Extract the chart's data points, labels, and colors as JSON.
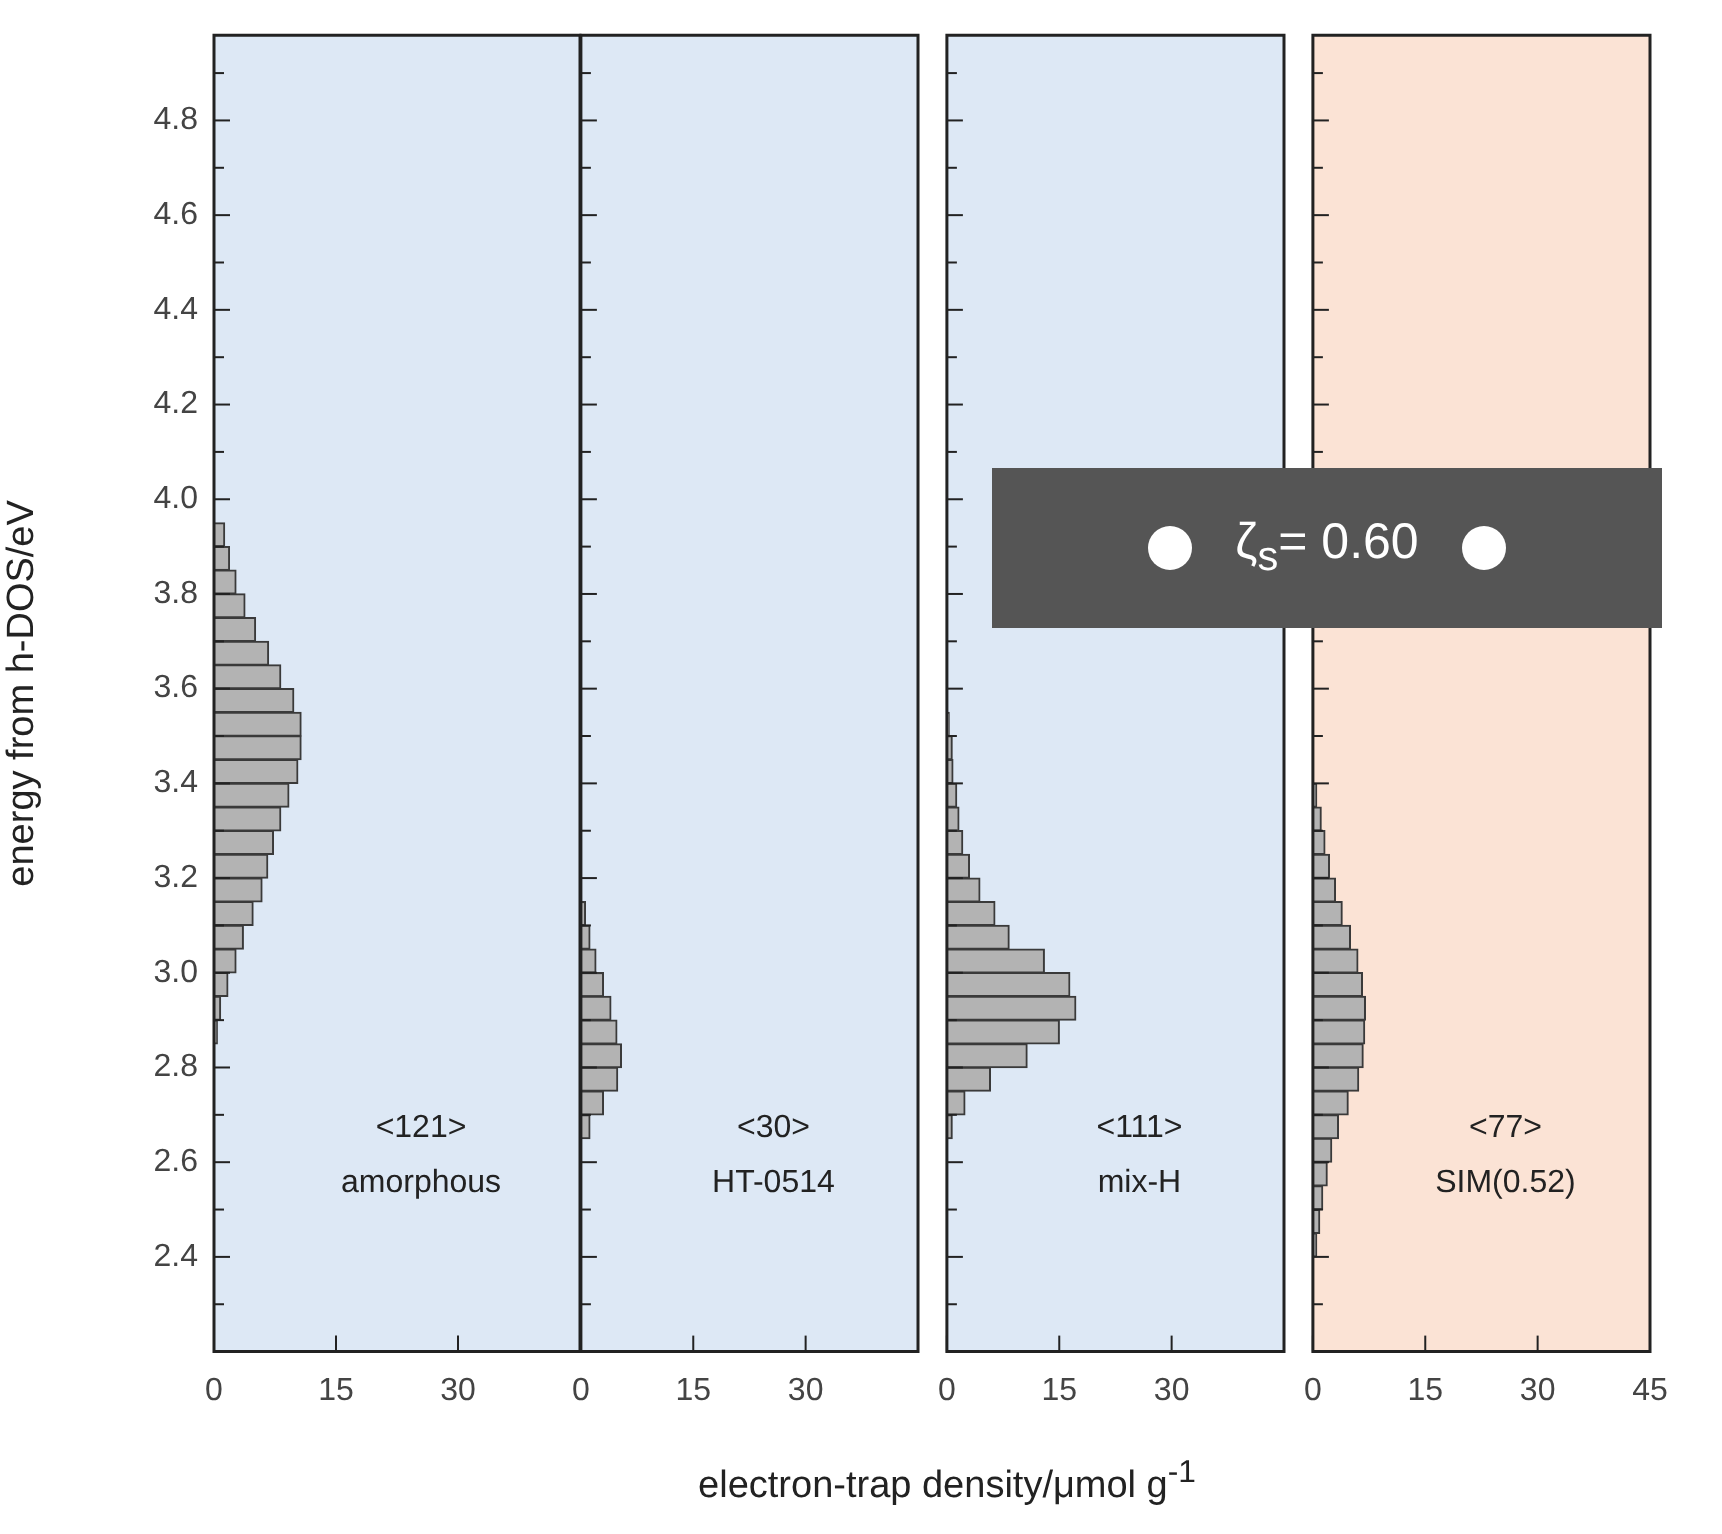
{
  "chart_data": [
    {
      "type": "histogram",
      "orientation": "horizontal",
      "color": "#b3b3b3",
      "ylabel": "energy from h-DOS/eV",
      "xlabel": "electron-trap density/μmol g$^{-1}$",
      "bins": [
        2.85,
        2.9,
        2.95,
        3.0,
        3.05,
        3.1,
        3.15,
        3.2,
        3.25,
        3.3,
        3.35,
        3.4,
        3.45,
        3.5,
        3.55,
        3.6,
        3.65,
        3.7,
        3.75,
        3.8,
        3.85,
        3.9,
        3.95
      ],
      "values": [
        0.4,
        0.8,
        1.7,
        2.7,
        3.6,
        4.8,
        5.9,
        6.6,
        7.3,
        8.2,
        9.2,
        10.3,
        10.7,
        10.7,
        9.8,
        8.2,
        6.7,
        5.1,
        3.8,
        2.7,
        1.9,
        1.3
      ],
      "xlim": [
        0,
        45
      ],
      "xticks": [
        0,
        15,
        30
      ],
      "ylim": [
        2.2,
        4.98
      ],
      "yticks": [
        {
          "value": 2.3,
          "label": null
        },
        2.4,
        {
          "value": 2.5,
          "label": null
        },
        2.6,
        {
          "value": 2.7,
          "label": null
        },
        2.8,
        {
          "value": 2.9,
          "label": null
        },
        {
          "value": 3,
          "label": "3.0"
        },
        {
          "value": 3.1,
          "label": null
        },
        3.2,
        {
          "value": 3.3,
          "label": null
        },
        3.4,
        {
          "value": 3.5,
          "label": null
        },
        3.6,
        {
          "value": 3.7,
          "label": null
        },
        3.8,
        {
          "value": 3.9,
          "label": null
        },
        {
          "value": 4,
          "label": "4.0"
        },
        {
          "value": 4.1,
          "label": null
        },
        4.2,
        {
          "value": 4.3,
          "label": null
        },
        4.4,
        {
          "value": 4.5,
          "label": null
        },
        4.6,
        {
          "value": 4.7,
          "label": null
        },
        4.8,
        {
          "value": 4.9,
          "label": null
        }
      ],
      "annotations": [
        "<121>",
        "amorphous"
      ]
    },
    {
      "type": "histogram",
      "orientation": "horizontal",
      "color": "#b3b3b3",
      "tick_labels": "x",
      "bins": [
        2.65,
        2.7,
        2.75,
        2.8,
        2.85,
        2.9,
        2.95,
        3.0,
        3.05,
        3.1,
        3.15
      ],
      "values": [
        1.2,
        3.0,
        4.9,
        5.4,
        4.8,
        4.0,
        3.0,
        2.0,
        1.2,
        0.6
      ],
      "xlim": [
        0,
        45
      ],
      "xticks": [
        0,
        15,
        30
      ],
      "ylim": [
        2.2,
        4.98
      ],
      "yticks": [
        {
          "value": 2.3,
          "label": null
        },
        {
          "value": 2.4,
          "label": null
        },
        {
          "value": 2.5,
          "label": null
        },
        {
          "value": 2.6,
          "label": null
        },
        {
          "value": 2.7,
          "label": null
        },
        {
          "value": 2.8,
          "label": null
        },
        {
          "value": 2.9,
          "label": null
        },
        {
          "value": 3,
          "label": null
        },
        {
          "value": 3.1,
          "label": null
        },
        {
          "value": 3.2,
          "label": null
        },
        {
          "value": 3.3,
          "label": null
        },
        {
          "value": 3.4,
          "label": null
        },
        {
          "value": 3.5,
          "label": null
        },
        {
          "value": 3.6,
          "label": null
        },
        {
          "value": 3.7,
          "label": null
        },
        {
          "value": 3.8,
          "label": null
        },
        {
          "value": 3.9,
          "label": null
        },
        {
          "value": 4,
          "label": null
        },
        {
          "value": 4.1,
          "label": null
        },
        {
          "value": 4.2,
          "label": null
        },
        {
          "value": 4.3,
          "label": null
        },
        {
          "value": 4.4,
          "label": null
        },
        {
          "value": 4.5,
          "label": null
        },
        {
          "value": 4.6,
          "label": null
        },
        {
          "value": 4.7,
          "label": null
        },
        {
          "value": 4.8,
          "label": null
        },
        {
          "value": 4.9,
          "label": null
        }
      ],
      "annotations": [
        "<30>",
        "HT-0514"
      ]
    },
    {
      "type": "histogram",
      "orientation": "horizontal",
      "color": "#b3b3b3",
      "tick_labels": "x",
      "bins": [
        2.65,
        2.7,
        2.75,
        2.8,
        2.85,
        2.9,
        2.95,
        3.0,
        3.05,
        3.1,
        3.15,
        3.2,
        3.25,
        3.3,
        3.35,
        3.4,
        3.45,
        3.5,
        3.55
      ],
      "values": [
        0.7,
        2.4,
        5.8,
        10.7,
        15.0,
        17.2,
        16.4,
        13.0,
        8.3,
        6.4,
        4.4,
        3.0,
        2.1,
        1.6,
        1.3,
        0.8,
        0.7,
        0.3
      ],
      "xlim": [
        0,
        45
      ],
      "xticks": [
        0,
        15,
        30
      ],
      "ylim": [
        2.2,
        4.98
      ],
      "yticks": [
        {
          "value": 2.3,
          "label": null
        },
        {
          "value": 2.4,
          "label": null
        },
        {
          "value": 2.5,
          "label": null
        },
        {
          "value": 2.6,
          "label": null
        },
        {
          "value": 2.7,
          "label": null
        },
        {
          "value": 2.8,
          "label": null
        },
        {
          "value": 2.9,
          "label": null
        },
        {
          "value": 3,
          "label": null
        },
        {
          "value": 3.1,
          "label": null
        },
        {
          "value": 3.2,
          "label": null
        },
        {
          "value": 3.3,
          "label": null
        },
        {
          "value": 3.4,
          "label": null
        },
        {
          "value": 3.5,
          "label": null
        },
        {
          "value": 3.6,
          "label": null
        },
        {
          "value": 3.7,
          "label": null
        },
        {
          "value": 3.8,
          "label": null
        },
        {
          "value": 3.9,
          "label": null
        },
        {
          "value": 4,
          "label": null
        },
        {
          "value": 4.1,
          "label": null
        },
        {
          "value": 4.2,
          "label": null
        },
        {
          "value": 4.3,
          "label": null
        },
        {
          "value": 4.4,
          "label": null
        },
        {
          "value": 4.5,
          "label": null
        },
        {
          "value": 4.6,
          "label": null
        },
        {
          "value": 4.7,
          "label": null
        },
        {
          "value": 4.8,
          "label": null
        },
        {
          "value": 4.9,
          "label": null
        }
      ],
      "annotations": [
        "<111>",
        "mix-H",
        "ζ$_{s}$= 0.60"
      ]
    },
    {
      "type": "histogram",
      "orientation": "horizontal",
      "color": "#b3b3b3",
      "tick_labels": "x",
      "bins": [
        2.4,
        2.45,
        2.5,
        2.55,
        2.6,
        2.65,
        2.7,
        2.75,
        2.8,
        2.85,
        2.9,
        2.95,
        3.0,
        3.05,
        3.1,
        3.15,
        3.2,
        3.25,
        3.3,
        3.35,
        3.4
      ],
      "values": [
        0.5,
        0.9,
        1.3,
        1.9,
        2.5,
        3.4,
        4.7,
        6.1,
        6.7,
        6.9,
        7.0,
        6.6,
        6.0,
        5.0,
        3.9,
        3.0,
        2.2,
        1.6,
        1.1,
        0.5
      ],
      "xlim": [
        0,
        45
      ],
      "xticks": [
        0,
        15,
        30,
        45
      ],
      "ylim": [
        2.2,
        4.98
      ],
      "yticks": [
        {
          "value": 2.3,
          "label": null
        },
        {
          "value": 2.4,
          "label": null
        },
        {
          "value": 2.5,
          "label": null
        },
        {
          "value": 2.6,
          "label": null
        },
        {
          "value": 2.7,
          "label": null
        },
        {
          "value": 2.8,
          "label": null
        },
        {
          "value": 2.9,
          "label": null
        },
        {
          "value": 3,
          "label": null
        },
        {
          "value": 3.1,
          "label": null
        },
        {
          "value": 3.2,
          "label": null
        },
        {
          "value": 3.3,
          "label": null
        },
        {
          "value": 3.4,
          "label": null
        },
        {
          "value": 3.5,
          "label": null
        },
        {
          "value": 3.6,
          "label": null
        },
        {
          "value": 3.7,
          "label": null
        },
        {
          "value": 3.8,
          "label": null
        },
        {
          "value": 3.9,
          "label": null
        },
        {
          "value": 4,
          "label": null
        },
        {
          "value": 4.1,
          "label": null
        },
        {
          "value": 4.2,
          "label": null
        },
        {
          "value": 4.3,
          "label": null
        },
        {
          "value": 4.4,
          "label": null
        },
        {
          "value": 4.5,
          "label": null
        },
        {
          "value": 4.6,
          "label": null
        },
        {
          "value": 4.7,
          "label": null
        },
        {
          "value": 4.8,
          "label": null
        },
        {
          "value": 4.9,
          "label": null
        }
      ],
      "annotations": [
        "<77>",
        "SIM(0.52)"
      ]
    }
  ]
}
